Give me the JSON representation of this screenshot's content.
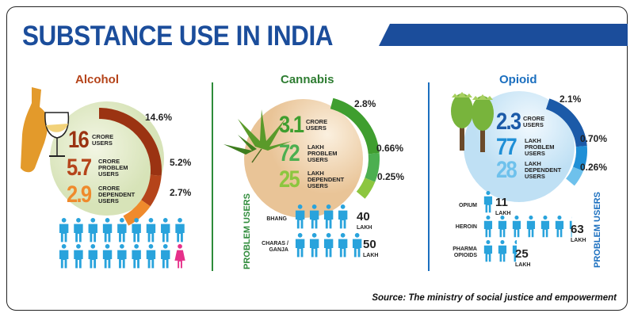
{
  "title": "SUBSTANCE USE IN INDIA",
  "source": "Source: The ministry of social justice and empowerment",
  "colors": {
    "title": "#1b4d9b",
    "alcohol": "#b5441a",
    "cannabis": "#2e8b3a",
    "opioid": "#1b6fbf",
    "person": "#29a3dc",
    "female": "#e6308a"
  },
  "alcohol": {
    "label": "Alcohol",
    "icon": "bottle-and-wine-glass-icon",
    "stats": [
      {
        "value": "16",
        "unit": "CRORE",
        "desc": "USERS"
      },
      {
        "value": "5.7",
        "unit": "CRORE",
        "desc": "PROBLEM USERS"
      },
      {
        "value": "2.9",
        "unit": "CRORE",
        "desc": "DEPENDENT USERS"
      }
    ],
    "percents": [
      "14.6%",
      "5.2%",
      "2.7%"
    ],
    "people": {
      "male": 17,
      "female": 1
    }
  },
  "cannabis": {
    "label": "Cannabis",
    "icon": "cannabis-leaf-icon",
    "stats": [
      {
        "value": "3.1",
        "unit": "CRORE",
        "desc": "USERS"
      },
      {
        "value": "72",
        "unit": "LAKH",
        "desc": "PROBLEM USERS"
      },
      {
        "value": "25",
        "unit": "LAKH",
        "desc": "DEPENDENT USERS"
      }
    ],
    "percents": [
      "2.8%",
      "0.66%",
      "0.25%"
    ],
    "problem_label": "PROBLEM USERS",
    "problem": [
      {
        "name": "BHANG",
        "value": "40",
        "unit": "LAKH",
        "icons": 4
      },
      {
        "name": "CHARAS / GANJA",
        "value": "50",
        "unit": "LAKH",
        "icons": 5
      }
    ]
  },
  "opioid": {
    "label": "Opioid",
    "icon": "poppy-pod-icon",
    "stats": [
      {
        "value": "2.3",
        "unit": "CRORE",
        "desc": "USERS"
      },
      {
        "value": "77",
        "unit": "LAKH",
        "desc": "PROBLEM USERS"
      },
      {
        "value": "28",
        "unit": "LAKH",
        "desc": "DEPENDENT USERS"
      }
    ],
    "percents": [
      "2.1%",
      "0.70%",
      "0.26%"
    ],
    "problem_label": "PROBLEM USERS",
    "problem": [
      {
        "name": "OPIUM",
        "value": "11",
        "unit": "LAKH",
        "icons": 1
      },
      {
        "name": "HEROIN",
        "value": "63",
        "unit": "LAKH",
        "icons": 6.3
      },
      {
        "name": "PHARMA OPIOIDS",
        "value": "25",
        "unit": "LAKH",
        "icons": 2.5
      }
    ]
  }
}
